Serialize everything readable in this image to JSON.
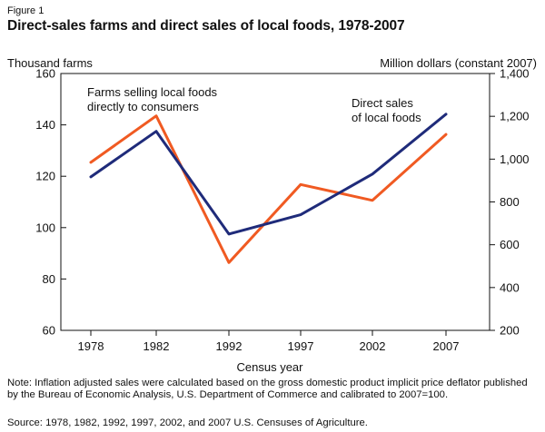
{
  "figure": {
    "label": "Figure 1",
    "title": "Direct-sales farms and direct sales of local foods, 1978-2007",
    "note": "Note: Inflation adjusted sales were calculated based on the gross domestic product  implicit price deflator published by the Bureau of Economic Analysis, U.S. Department of Commerce and calibrated to 2007=100.",
    "source": "Source: 1978, 1982, 1992, 1997, 2002, and 2007 U.S. Censuses of Agriculture."
  },
  "chart_data": {
    "type": "line",
    "title": "Direct-sales farms and direct sales of local foods, 1978-2007",
    "xlabel": "Census year",
    "ylabel_left": "Thousand farms",
    "ylabel_right": "Million dollars (constant 2007)",
    "categories": [
      "1978",
      "1982",
      "1992",
      "1997",
      "2002",
      "2007"
    ],
    "ylim_left": [
      60,
      160
    ],
    "yticks_left": [
      60,
      80,
      100,
      120,
      140,
      160
    ],
    "ylim_right": [
      200,
      1400
    ],
    "yticks_right": [
      200,
      400,
      600,
      800,
      1000,
      1200,
      1400
    ],
    "yticks_right_labels": [
      "200",
      "400",
      "600",
      "800",
      "1,000",
      "1,200",
      "1,400"
    ],
    "grid": false,
    "series": [
      {
        "name": "Farms selling local foods directly to consumers",
        "label_lines": [
          "Farms selling local foods",
          "directly to consumers"
        ],
        "axis": "left",
        "color": "#f05a22",
        "values": [
          125.4,
          143.5,
          86.4,
          116.8,
          110.6,
          136.3
        ]
      },
      {
        "name": "Direct sales of local foods",
        "label_lines": [
          "Direct sales",
          "of local foods"
        ],
        "axis": "right",
        "color": "#1f2b7a",
        "values": [
          917,
          1130,
          650,
          740,
          930,
          1210
        ]
      }
    ]
  }
}
